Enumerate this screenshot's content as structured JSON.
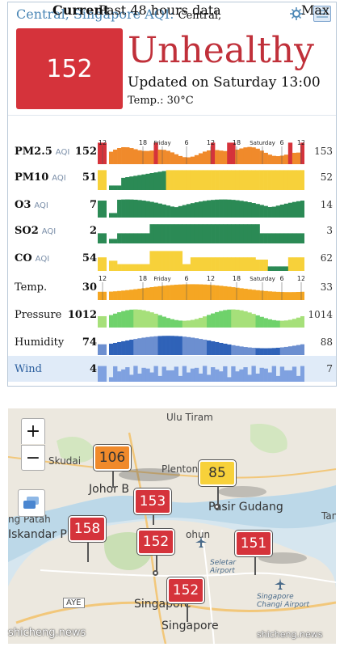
{
  "header": {
    "title": "Central, Singapore AQI",
    "location": "Central,",
    "icons": [
      "settings-icon",
      "flag-icon"
    ]
  },
  "summary": {
    "aqi": "152",
    "status": "Unhealthy",
    "updated": "Updated on Saturday 13:00",
    "temp": "Temp.: 30°C"
  },
  "columns": {
    "current": "Current",
    "past": "Past 48 hours data",
    "max": "Max"
  },
  "rows": [
    {
      "label": "PM2.5",
      "unit": "AQI",
      "current": "152",
      "max": "153"
    },
    {
      "label": "PM10",
      "unit": "AQI",
      "current": "51",
      "max": "52"
    },
    {
      "label": "O3",
      "unit": "AQI",
      "current": "7",
      "max": "14"
    },
    {
      "label": "SO2",
      "unit": "AQI",
      "current": "2",
      "max": "3"
    },
    {
      "label": "CO",
      "unit": "AQI",
      "current": "54",
      "max": "62"
    },
    {
      "label": "Temp.",
      "unit": "",
      "current": "30",
      "max": "33"
    },
    {
      "label": "Pressure",
      "unit": "",
      "current": "1012",
      "max": "1014"
    },
    {
      "label": "Humidity",
      "unit": "",
      "current": "74",
      "max": "88"
    },
    {
      "label": "Wind",
      "unit": "",
      "current": "4",
      "max": "7"
    }
  ],
  "time_ticks": [
    "12",
    "18",
    "Friday",
    "6",
    "12",
    "18",
    "Saturday",
    "6",
    "12"
  ],
  "colors": {
    "unhealthy": "#d5333b",
    "sensitive": "#f08a2b",
    "moderate": "#f7d13a",
    "good": "#2b8a55",
    "temp": "#f5a623",
    "pressure": "#6fd26b",
    "humidity": "#2f62b8",
    "wind": "#7fa1e0"
  },
  "map": {
    "places": [
      "Ulu Tiram",
      "Skudai",
      "Plentong",
      "Johor B",
      "Pasir Gudang",
      "ng Patah",
      "Iskandar P",
      "Seletar Airport",
      "Singapore",
      "Singapore Changi Airport",
      "AYE",
      "Singapore",
      "Tan",
      "ohun"
    ],
    "markers": [
      {
        "value": "106",
        "level": "sensitive"
      },
      {
        "value": "85",
        "level": "moderate"
      },
      {
        "value": "153",
        "level": "unhealthy"
      },
      {
        "value": "158",
        "level": "unhealthy"
      },
      {
        "value": "152",
        "level": "unhealthy"
      },
      {
        "value": "151",
        "level": "unhealthy"
      },
      {
        "value": "152",
        "level": "unhealthy"
      }
    ],
    "controls": {
      "zoom_in": "+",
      "zoom_out": "−"
    }
  },
  "watermark": "shicheng.news"
}
